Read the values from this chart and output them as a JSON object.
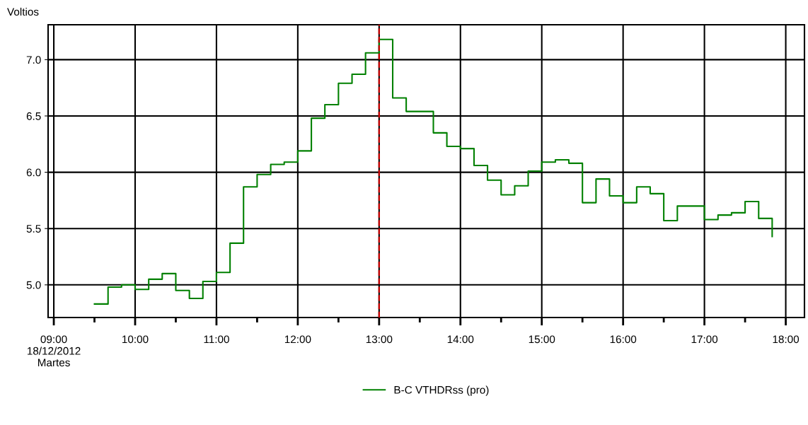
{
  "chart_data": {
    "type": "step",
    "ylabel": "Voltios",
    "x": [
      9.5,
      9.667,
      9.833,
      10.0,
      10.167,
      10.333,
      10.5,
      10.667,
      10.833,
      11.0,
      11.167,
      11.333,
      11.5,
      11.667,
      11.833,
      12.0,
      12.167,
      12.333,
      12.5,
      12.667,
      12.833,
      13.0,
      13.167,
      13.333,
      13.5,
      13.667,
      13.833,
      14.0,
      14.167,
      14.333,
      14.5,
      14.667,
      14.833,
      15.0,
      15.167,
      15.333,
      15.5,
      15.667,
      15.833,
      16.0,
      16.167,
      16.333,
      16.5,
      16.667,
      16.833,
      17.0,
      17.167,
      17.333,
      17.5,
      17.667,
      17.833
    ],
    "series": [
      {
        "name": "B-C VTHDRss (pro)",
        "color": "#008000",
        "values": [
          4.83,
          4.98,
          5.0,
          4.96,
          5.05,
          5.1,
          4.95,
          4.88,
          5.03,
          5.11,
          5.37,
          5.87,
          5.98,
          6.07,
          6.09,
          6.19,
          6.48,
          6.6,
          6.79,
          6.87,
          7.06,
          7.18,
          6.66,
          6.54,
          6.54,
          6.35,
          6.23,
          6.21,
          6.06,
          5.93,
          5.8,
          5.88,
          6.01,
          6.09,
          6.11,
          6.08,
          5.73,
          5.94,
          5.79,
          5.73,
          5.87,
          5.81,
          5.57,
          5.7,
          5.7,
          5.58,
          5.62,
          5.64,
          5.74,
          5.59,
          5.43
        ]
      }
    ],
    "xlim": [
      8.93,
      18.23
    ],
    "xticks": [
      {
        "value": 9,
        "label": "09:00\n18/12/2012\nMartes"
      },
      {
        "value": 9.5,
        "label": null
      },
      {
        "value": 10,
        "label": "10:00"
      },
      {
        "value": 10.5,
        "label": null
      },
      {
        "value": 11,
        "label": "11:00"
      },
      {
        "value": 11.5,
        "label": null
      },
      {
        "value": 12,
        "label": "12:00"
      },
      {
        "value": 12.5,
        "label": null
      },
      {
        "value": 13,
        "label": "13:00"
      },
      {
        "value": 13.5,
        "label": null
      },
      {
        "value": 14,
        "label": "14:00"
      },
      {
        "value": 14.5,
        "label": null
      },
      {
        "value": 15,
        "label": "15:00"
      },
      {
        "value": 15.5,
        "label": null
      },
      {
        "value": 16,
        "label": "16:00"
      },
      {
        "value": 16.5,
        "label": null
      },
      {
        "value": 17,
        "label": "17:00"
      },
      {
        "value": 17.5,
        "label": null
      },
      {
        "value": 18,
        "label": "18:00"
      }
    ],
    "ylim": [
      4.71,
      7.31
    ],
    "yticks": [
      {
        "value": 5,
        "label": "5.0"
      },
      {
        "value": 5.5,
        "label": "5.5"
      },
      {
        "value": 6,
        "label": "6.0"
      },
      {
        "value": 6.5,
        "label": "6.5"
      },
      {
        "value": 7,
        "label": "7.0"
      }
    ],
    "ref_lines": [
      {
        "axis": "x",
        "value": 13,
        "color": "#cc0000",
        "line_style": "dashed"
      }
    ],
    "grid": true,
    "legend": "bottom",
    "line_style": "solid",
    "marker": "none"
  }
}
